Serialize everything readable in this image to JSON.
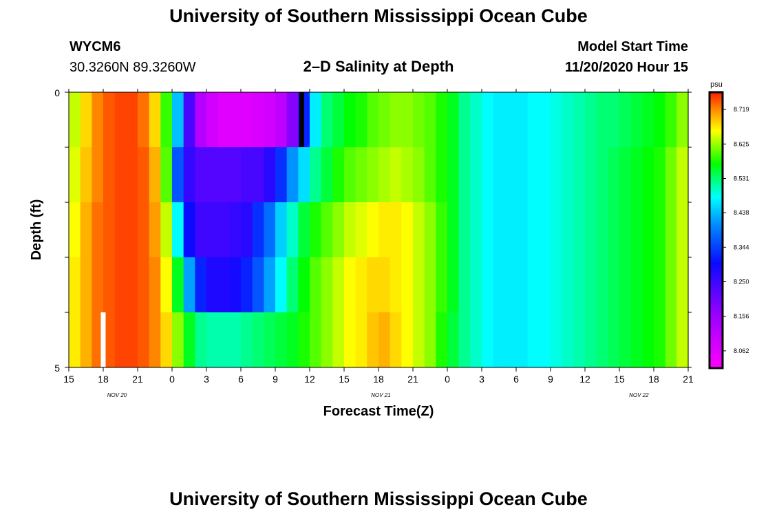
{
  "title": "University of Southern Mississippi Ocean Cube",
  "footer_title": "University of Southern Mississippi Ocean Cube",
  "station": {
    "id": "WYCM6",
    "coords": "30.3260N 89.3260W"
  },
  "plot_title": "2–D Salinity at Depth",
  "model": {
    "label": "Model Start Time",
    "time": "11/20/2020 Hour 15"
  },
  "chart_data": {
    "type": "heatmap",
    "title": "2–D Salinity at Depth",
    "xlabel": "Forecast Time(Z)",
    "ylabel": "Depth (ft)",
    "ylim": [
      0,
      5
    ],
    "x_tick_labels": [
      "15",
      "18",
      "21",
      "0",
      "3",
      "6",
      "9",
      "12",
      "15",
      "18",
      "21",
      "0",
      "3",
      "6",
      "9",
      "12",
      "15",
      "18",
      "21"
    ],
    "y_tick_labels": [
      "0",
      "5"
    ],
    "date_labels": [
      "NOV  20",
      "NOV  21",
      "NOV  22"
    ],
    "colorbar": {
      "unit": "psu",
      "min": 8.015,
      "max": 8.766,
      "tick_labels": [
        "8.719",
        "8.625",
        "8.531",
        "8.438",
        "8.344",
        "8.250",
        "8.156",
        "8.062"
      ]
    },
    "hours_per_column": 1,
    "n_hours": 54,
    "n_rows": 5,
    "salinity_by_row": [
      [
        8.64,
        8.68,
        8.72,
        8.74,
        8.75,
        8.75,
        8.73,
        8.68,
        8.59,
        8.44,
        8.24,
        8.12,
        8.08,
        8.06,
        8.06,
        8.06,
        8.07,
        8.08,
        8.11,
        8.18,
        8.32,
        8.47,
        8.53,
        8.55,
        8.57,
        8.58,
        8.6,
        8.61,
        8.62,
        8.62,
        8.61,
        8.6,
        8.58,
        8.56,
        8.52,
        8.5,
        8.48,
        8.47,
        8.47,
        8.47,
        8.48,
        8.48,
        8.49,
        8.5,
        8.51,
        8.52,
        8.53,
        8.53,
        8.54,
        8.55,
        8.56,
        8.57,
        8.59,
        8.62
      ],
      [
        8.65,
        8.69,
        8.72,
        8.74,
        8.75,
        8.75,
        8.74,
        8.7,
        8.6,
        8.36,
        8.26,
        8.23,
        8.23,
        8.23,
        8.23,
        8.24,
        8.24,
        8.27,
        8.33,
        8.41,
        8.46,
        8.52,
        8.55,
        8.58,
        8.6,
        8.61,
        8.62,
        8.63,
        8.64,
        8.63,
        8.62,
        8.6,
        8.58,
        8.56,
        8.52,
        8.5,
        8.48,
        8.47,
        8.47,
        8.47,
        8.48,
        8.48,
        8.49,
        8.5,
        8.51,
        8.52,
        8.53,
        8.54,
        8.55,
        8.56,
        8.57,
        8.58,
        8.61,
        8.64
      ],
      [
        8.66,
        8.7,
        8.73,
        8.74,
        8.75,
        8.75,
        8.74,
        8.71,
        8.64,
        8.48,
        8.3,
        8.25,
        8.25,
        8.25,
        8.26,
        8.27,
        8.33,
        8.38,
        8.45,
        8.5,
        8.55,
        8.58,
        8.6,
        8.62,
        8.64,
        8.65,
        8.66,
        8.67,
        8.67,
        8.66,
        8.64,
        8.62,
        8.59,
        8.56,
        8.52,
        8.5,
        8.48,
        8.47,
        8.47,
        8.47,
        8.48,
        8.48,
        8.49,
        8.5,
        8.51,
        8.52,
        8.53,
        8.54,
        8.55,
        8.56,
        8.57,
        8.58,
        8.61,
        8.64
      ],
      [
        8.67,
        8.7,
        8.73,
        8.74,
        8.75,
        8.75,
        8.74,
        8.72,
        8.66,
        8.56,
        8.42,
        8.32,
        8.28,
        8.28,
        8.29,
        8.32,
        8.36,
        8.42,
        8.48,
        8.53,
        8.57,
        8.6,
        8.62,
        8.64,
        8.66,
        8.67,
        8.68,
        8.68,
        8.67,
        8.66,
        8.64,
        8.62,
        8.59,
        8.56,
        8.52,
        8.5,
        8.48,
        8.47,
        8.47,
        8.47,
        8.48,
        8.48,
        8.49,
        8.5,
        8.51,
        8.52,
        8.53,
        8.54,
        8.55,
        8.56,
        8.57,
        8.58,
        8.61,
        8.64
      ],
      [
        8.67,
        8.7,
        8.73,
        8.74,
        8.75,
        8.75,
        8.74,
        8.72,
        8.68,
        8.62,
        8.56,
        8.52,
        8.51,
        8.51,
        8.51,
        8.52,
        8.53,
        8.54,
        8.55,
        8.56,
        8.58,
        8.6,
        8.62,
        8.64,
        8.66,
        8.67,
        8.69,
        8.7,
        8.68,
        8.66,
        8.64,
        8.62,
        8.58,
        8.55,
        8.52,
        8.5,
        8.48,
        8.47,
        8.47,
        8.47,
        8.48,
        8.48,
        8.49,
        8.5,
        8.51,
        8.52,
        8.53,
        8.54,
        8.55,
        8.56,
        8.57,
        8.58,
        8.61,
        8.64
      ]
    ],
    "markers": [
      {
        "color": "#000000",
        "hour": 20.3,
        "row": 0
      },
      {
        "color": "#ffffff",
        "hour": 3,
        "row": 4
      }
    ]
  }
}
